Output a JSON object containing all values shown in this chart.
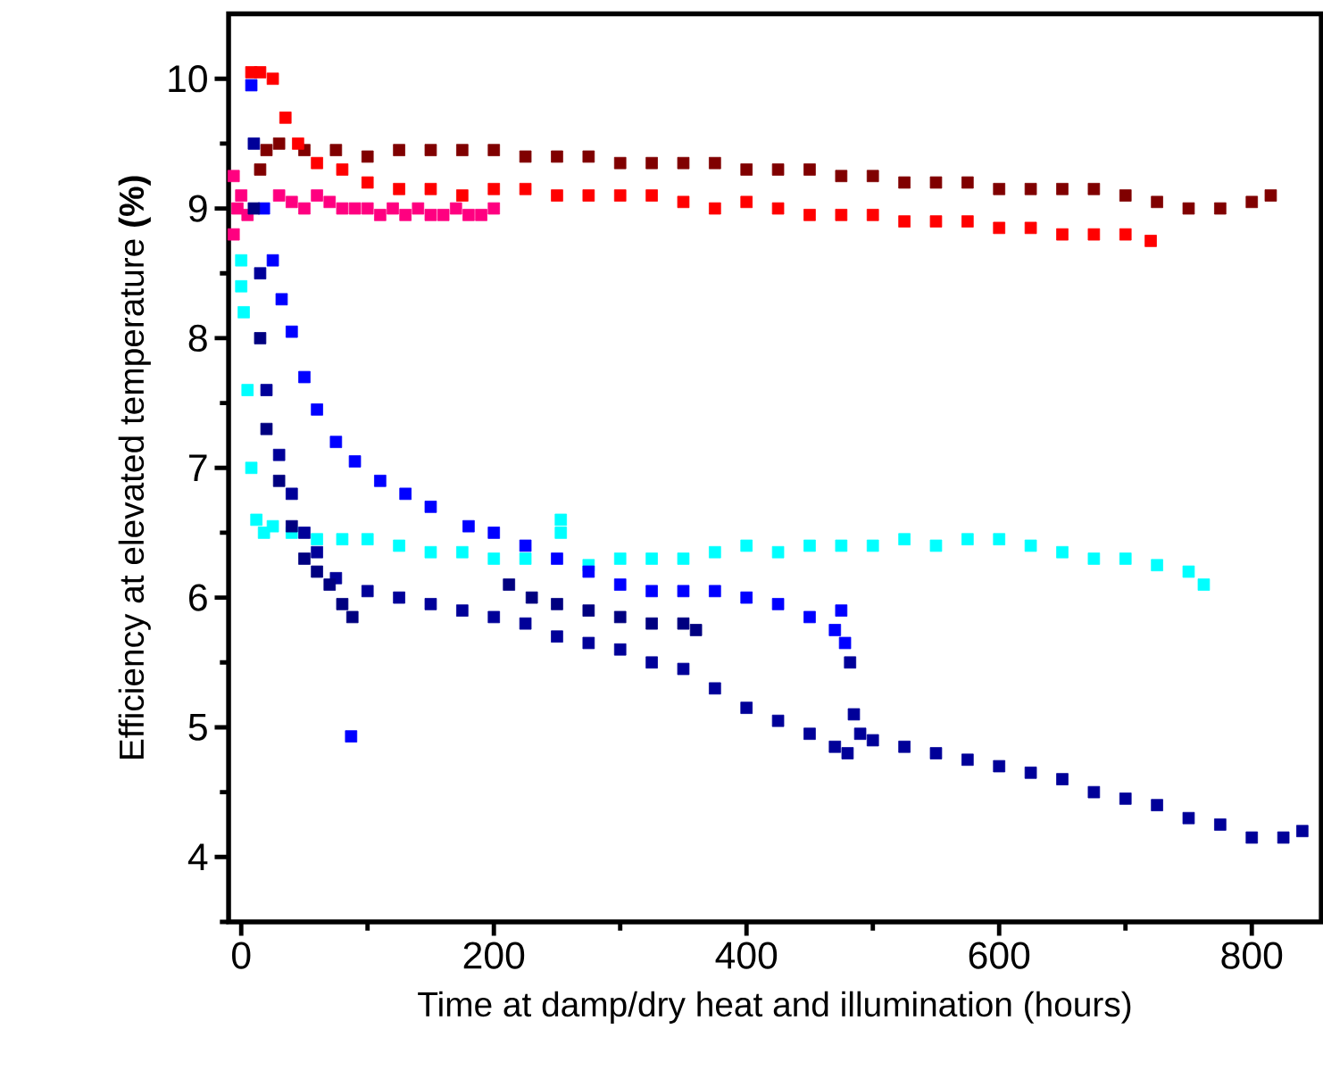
{
  "chart_data": {
    "type": "scatter",
    "xlabel": "Time at damp/dry heat and illumination (hours)",
    "ylabel": "Efficiency at elevated temperature **(%)**",
    "xlim": [
      -10,
      855
    ],
    "ylim": [
      3.5,
      10.5
    ],
    "xticks": [
      0,
      {
        "value": 100,
        "label": null
      },
      200,
      {
        "value": 300,
        "label": null
      },
      400,
      {
        "value": 500,
        "label": null
      },
      600,
      {
        "value": 700,
        "label": null
      },
      800
    ],
    "yticks": [
      {
        "value": 3.5,
        "label": null
      },
      4,
      {
        "value": 4.5,
        "label": null
      },
      5,
      {
        "value": 5.5,
        "label": null
      },
      6,
      {
        "value": 6.5,
        "label": null
      },
      7,
      {
        "value": 7.5,
        "label": null
      },
      8,
      {
        "value": 8.5,
        "label": null
      },
      9,
      {
        "value": 9.5,
        "label": null
      },
      10
    ],
    "marker": "square",
    "series": [
      {
        "color": "#800000",
        "x": [
          15,
          20,
          30,
          50,
          75,
          100,
          125,
          150,
          175,
          200,
          225,
          250,
          275,
          300,
          325,
          350,
          375,
          400,
          425,
          450,
          475,
          500,
          525,
          550,
          575,
          600,
          625,
          650,
          675,
          700,
          725,
          750,
          775,
          800,
          815
        ],
        "values": [
          9.3,
          9.45,
          9.5,
          9.45,
          9.45,
          9.4,
          9.45,
          9.45,
          9.45,
          9.45,
          9.4,
          9.4,
          9.4,
          9.35,
          9.35,
          9.35,
          9.35,
          9.3,
          9.3,
          9.3,
          9.25,
          9.25,
          9.2,
          9.2,
          9.2,
          9.15,
          9.15,
          9.15,
          9.15,
          9.1,
          9.05,
          9.0,
          9.0,
          9.05,
          9.1
        ]
      },
      {
        "color": "#ff0000",
        "x": [
          8,
          15,
          25,
          35,
          45,
          60,
          80,
          100,
          125,
          150,
          175,
          200,
          225,
          250,
          275,
          300,
          325,
          350,
          375,
          400,
          425,
          450,
          475,
          500,
          525,
          550,
          575,
          600,
          625,
          650,
          675,
          700,
          720
        ],
        "values": [
          10.05,
          10.05,
          10.0,
          9.7,
          9.5,
          9.35,
          9.3,
          9.2,
          9.15,
          9.15,
          9.1,
          9.15,
          9.15,
          9.1,
          9.1,
          9.1,
          9.1,
          9.05,
          9.0,
          9.05,
          9.0,
          8.95,
          8.95,
          8.95,
          8.9,
          8.9,
          8.9,
          8.85,
          8.85,
          8.8,
          8.8,
          8.8,
          8.75
        ]
      },
      {
        "color": "#ff0080",
        "x": [
          -6,
          -6,
          -3,
          0,
          5,
          10,
          20,
          30,
          40,
          50,
          60,
          70,
          80,
          90,
          100,
          110,
          120,
          130,
          140,
          150,
          160,
          170,
          180,
          190,
          200
        ],
        "values": [
          9.25,
          8.8,
          9.0,
          9.1,
          8.95,
          null,
          null,
          9.1,
          9.05,
          9.0,
          9.1,
          9.05,
          9.0,
          9.0,
          9.0,
          8.95,
          9.0,
          8.95,
          9.0,
          8.95,
          8.95,
          9.0,
          8.95,
          8.95,
          9.0
        ]
      },
      {
        "color": "#00ffff",
        "x": [
          0,
          0,
          2,
          5,
          8,
          12,
          18,
          25,
          40,
          60,
          80,
          100,
          125,
          150,
          175,
          200,
          225,
          250,
          253,
          253,
          275,
          300,
          325,
          350,
          375,
          400,
          425,
          450,
          475,
          500,
          525,
          550,
          575,
          600,
          625,
          650,
          675,
          700,
          725,
          750,
          762
        ],
        "values": [
          8.6,
          8.4,
          8.2,
          7.6,
          7.0,
          6.6,
          6.5,
          6.55,
          6.5,
          6.45,
          6.45,
          6.45,
          6.4,
          6.35,
          6.35,
          6.3,
          6.3,
          null,
          6.6,
          6.5,
          6.25,
          6.3,
          6.3,
          6.3,
          6.35,
          6.4,
          6.35,
          6.4,
          6.4,
          6.4,
          6.45,
          6.4,
          6.45,
          6.45,
          6.4,
          6.35,
          6.3,
          6.3,
          6.25,
          6.2,
          6.1
        ]
      },
      {
        "color": "#0000ff",
        "x": [
          8,
          12,
          18,
          25,
          32,
          40,
          50,
          60,
          75,
          87,
          90,
          110,
          130,
          150,
          180,
          200,
          225,
          250,
          275,
          300,
          325,
          350,
          375,
          400,
          425,
          450,
          470,
          475,
          478
        ],
        "values": [
          9.95,
          null,
          9.0,
          8.6,
          8.3,
          8.05,
          7.7,
          7.45,
          7.2,
          4.93,
          7.05,
          6.9,
          6.8,
          6.7,
          6.55,
          6.5,
          6.4,
          6.3,
          6.2,
          6.1,
          6.05,
          6.05,
          6.05,
          6.0,
          5.95,
          5.85,
          5.75,
          5.9,
          5.65
        ]
      },
      {
        "color": "#000099",
        "x": [
          10,
          15,
          20,
          30,
          40,
          50,
          60,
          75,
          100,
          125,
          150,
          175,
          200,
          225,
          250,
          275,
          300,
          325,
          350,
          375,
          400,
          425,
          450,
          470,
          480,
          482,
          485,
          490,
          500,
          525,
          550,
          575,
          600,
          625,
          650,
          675,
          700,
          725,
          750,
          775,
          800,
          825,
          840
        ],
        "values": [
          9.5,
          8.5,
          7.6,
          7.1,
          6.8,
          6.5,
          6.35,
          6.15,
          6.05,
          6.0,
          5.95,
          5.9,
          5.85,
          5.8,
          5.7,
          5.65,
          5.6,
          5.5,
          5.45,
          5.3,
          5.15,
          5.05,
          4.95,
          4.85,
          4.8,
          5.5,
          5.1,
          4.95,
          4.9,
          4.85,
          4.8,
          4.75,
          4.7,
          4.65,
          4.6,
          4.5,
          4.45,
          4.4,
          4.3,
          4.25,
          4.15,
          4.15,
          4.2
        ]
      },
      {
        "color": "#000080",
        "x": [
          10,
          15,
          20,
          30,
          40,
          50,
          60,
          70,
          80,
          88,
          212,
          230,
          250,
          275,
          300,
          325,
          350,
          360
        ],
        "values": [
          9.0,
          8.0,
          7.3,
          6.9,
          6.55,
          6.3,
          6.2,
          6.1,
          5.95,
          5.85,
          6.1,
          6.0,
          5.95,
          5.9,
          5.85,
          5.8,
          5.8,
          5.75
        ]
      }
    ]
  }
}
